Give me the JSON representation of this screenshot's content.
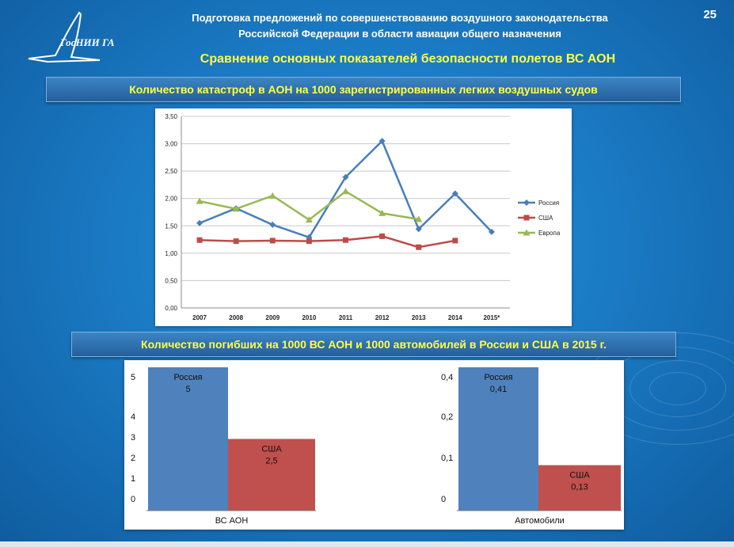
{
  "header": {
    "line1": "Подготовка предложений по совершенствованию воздушного законодательства",
    "line2": "Российской Федерации в области авиации общего назначения",
    "subtitle": "Сравнение основных показателей безопасности полетов ВС АОН",
    "page_number": "25",
    "logo_text": "ГосНИИ ГА"
  },
  "banners": {
    "top": "Количество катастроф в АОН на 1000 зарегистрированных легких воздушных судов",
    "bottom": "Количество погибших на 1000 ВС АОН и 1000 автомобилей в России и США в 2015 г."
  },
  "chart_data": [
    {
      "type": "line",
      "x": [
        "2007",
        "2008",
        "2009",
        "2010",
        "2011",
        "2012",
        "2013",
        "2014",
        "2015*"
      ],
      "y_ticks": [
        "0,00",
        "0,50",
        "1,00",
        "1,50",
        "2,00",
        "2,50",
        "3,00",
        "3,50"
      ],
      "ylim": [
        0,
        3.5
      ],
      "grid": true,
      "legend": "right",
      "series": [
        {
          "name": "Россия",
          "color": "#4a7ebb",
          "marker": "diamond",
          "values": [
            1.55,
            1.82,
            1.52,
            1.29,
            2.39,
            3.05,
            1.44,
            2.09,
            1.39
          ]
        },
        {
          "name": "США",
          "color": "#be4b48",
          "marker": "square",
          "values": [
            1.24,
            1.22,
            1.23,
            1.22,
            1.24,
            1.31,
            1.11,
            1.23,
            null
          ]
        },
        {
          "name": "Европа",
          "color": "#98b954",
          "marker": "triangle",
          "values": [
            1.95,
            1.81,
            2.05,
            1.61,
            2.13,
            1.73,
            1.62,
            null,
            null
          ]
        }
      ]
    },
    {
      "type": "bar",
      "categories": [
        "ВС АОН"
      ],
      "y_ticks": [
        "0",
        "1",
        "2",
        "3",
        "4",
        "5"
      ],
      "series": [
        {
          "name": "Россия",
          "color": "#4f81bd",
          "values": [
            5
          ],
          "label": "5"
        },
        {
          "name": "США",
          "color": "#c0504d",
          "values": [
            2.5
          ],
          "label": "2,5"
        }
      ]
    },
    {
      "type": "bar",
      "categories": [
        "Автомобили"
      ],
      "y_ticks": [
        "0",
        "0,1",
        "0,2",
        "0,4"
      ],
      "series": [
        {
          "name": "Россия",
          "color": "#4f81bd",
          "values": [
            0.41
          ],
          "label": "0,41"
        },
        {
          "name": "США",
          "color": "#c0504d",
          "values": [
            0.13
          ],
          "label": "0,13"
        }
      ]
    }
  ]
}
